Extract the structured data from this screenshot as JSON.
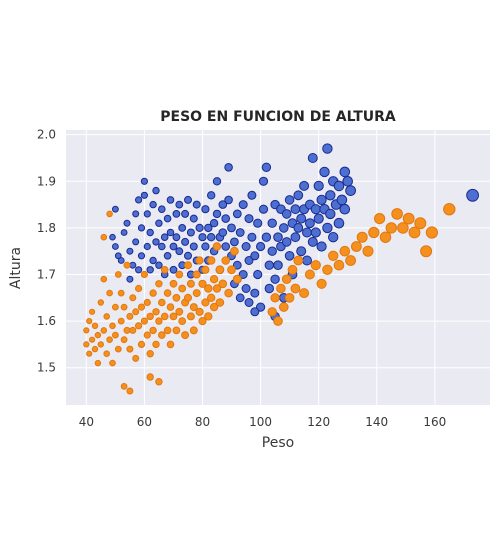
{
  "chart_data": {
    "type": "scatter",
    "title": "PESO EN FUNCION DE ALTURA",
    "xlabel": "Peso",
    "ylabel": "Altura",
    "xlim": [
      33,
      179
    ],
    "ylim": [
      1.42,
      2.01
    ],
    "xticks": [
      "40",
      "60",
      "80",
      "100",
      "120",
      "140",
      "160"
    ],
    "yticks": [
      "1.5",
      "1.6",
      "1.7",
      "1.8",
      "1.9",
      "2.0"
    ],
    "grid": true,
    "legend": "none",
    "colors": {
      "background": "#eaeaf2",
      "grid": "#ffffff",
      "blue_fill": "#4d6fd1",
      "blue_edge": "#1a2a8f",
      "orange_fill": "#f5901e",
      "orange_edge": "#e07810"
    },
    "series": [
      {
        "color": "blue",
        "points": [
          [
            49,
            1.78
          ],
          [
            50,
            1.76
          ],
          [
            50,
            1.84
          ],
          [
            51,
            1.74
          ],
          [
            52,
            1.73
          ],
          [
            53,
            1.79
          ],
          [
            54,
            1.81
          ],
          [
            55,
            1.75
          ],
          [
            55,
            1.69
          ],
          [
            56,
            1.72
          ],
          [
            57,
            1.77
          ],
          [
            57,
            1.83
          ],
          [
            58,
            1.71
          ],
          [
            58,
            1.86
          ],
          [
            59,
            1.74
          ],
          [
            59,
            1.8
          ],
          [
            60,
            1.87
          ],
          [
            60,
            1.9
          ],
          [
            61,
            1.76
          ],
          [
            61,
            1.83
          ],
          [
            62,
            1.71
          ],
          [
            62,
            1.79
          ],
          [
            63,
            1.73
          ],
          [
            63,
            1.85
          ],
          [
            64,
            1.77
          ],
          [
            64,
            1.88
          ],
          [
            65,
            1.81
          ],
          [
            65,
            1.72
          ],
          [
            66,
            1.76
          ],
          [
            66,
            1.84
          ],
          [
            67,
            1.78
          ],
          [
            67,
            1.7
          ],
          [
            68,
            1.82
          ],
          [
            68,
            1.74
          ],
          [
            69,
            1.86
          ],
          [
            69,
            1.79
          ],
          [
            70,
            1.76
          ],
          [
            70,
            1.71
          ],
          [
            71,
            1.83
          ],
          [
            71,
            1.78
          ],
          [
            72,
            1.75
          ],
          [
            72,
            1.85
          ],
          [
            73,
            1.8
          ],
          [
            73,
            1.72
          ],
          [
            74,
            1.77
          ],
          [
            74,
            1.83
          ],
          [
            75,
            1.86
          ],
          [
            75,
            1.74
          ],
          [
            76,
            1.79
          ],
          [
            76,
            1.7
          ],
          [
            77,
            1.82
          ],
          [
            77,
            1.76
          ],
          [
            78,
            1.73
          ],
          [
            78,
            1.85
          ],
          [
            79,
            1.8
          ],
          [
            80,
            1.78
          ],
          [
            80,
            1.71
          ],
          [
            81,
            1.84
          ],
          [
            81,
            1.76
          ],
          [
            82,
            1.8
          ],
          [
            82,
            1.73
          ],
          [
            83,
            1.87
          ],
          [
            83,
            1.78
          ],
          [
            84,
            1.81
          ],
          [
            84,
            1.75
          ],
          [
            85,
            1.9
          ],
          [
            85,
            1.83
          ],
          [
            86,
            1.78
          ],
          [
            86,
            1.71
          ],
          [
            87,
            1.85
          ],
          [
            87,
            1.79
          ],
          [
            88,
            1.82
          ],
          [
            88,
            1.76
          ],
          [
            89,
            1.93
          ],
          [
            89,
            1.86
          ],
          [
            90,
            1.8
          ],
          [
            90,
            1.74
          ],
          [
            91,
            1.77
          ],
          [
            91,
            1.68
          ],
          [
            92,
            1.83
          ],
          [
            92,
            1.72
          ],
          [
            93,
            1.79
          ],
          [
            93,
            1.65
          ],
          [
            94,
            1.85
          ],
          [
            94,
            1.7
          ],
          [
            95,
            1.76
          ],
          [
            95,
            1.67
          ],
          [
            96,
            1.82
          ],
          [
            96,
            1.73
          ],
          [
            97,
            1.87
          ],
          [
            97,
            1.78
          ],
          [
            98,
            1.74
          ],
          [
            98,
            1.66
          ],
          [
            99,
            1.81
          ],
          [
            99,
            1.7
          ],
          [
            100,
            1.63
          ],
          [
            100,
            1.76
          ],
          [
            101,
            1.9
          ],
          [
            101,
            1.84
          ],
          [
            102,
            1.93
          ],
          [
            102,
            1.78
          ],
          [
            103,
            1.72
          ],
          [
            103,
            1.67
          ],
          [
            104,
            1.81
          ],
          [
            104,
            1.75
          ],
          [
            105,
            1.85
          ],
          [
            105,
            1.69
          ],
          [
            106,
            1.78
          ],
          [
            106,
            1.72
          ],
          [
            107,
            1.84
          ],
          [
            107,
            1.76
          ],
          [
            108,
            1.8
          ],
          [
            108,
            1.65
          ],
          [
            109,
            1.83
          ],
          [
            109,
            1.77
          ],
          [
            110,
            1.86
          ],
          [
            110,
            1.74
          ],
          [
            111,
            1.81
          ],
          [
            111,
            1.7
          ],
          [
            112,
            1.84
          ],
          [
            112,
            1.78
          ],
          [
            113,
            1.87
          ],
          [
            113,
            1.8
          ],
          [
            114,
            1.82
          ],
          [
            114,
            1.75
          ],
          [
            115,
            1.89
          ],
          [
            115,
            1.84
          ],
          [
            116,
            1.79
          ],
          [
            116,
            1.73
          ],
          [
            117,
            1.85
          ],
          [
            117,
            1.81
          ],
          [
            118,
            1.95
          ],
          [
            118,
            1.77
          ],
          [
            119,
            1.84
          ],
          [
            119,
            1.79
          ],
          [
            120,
            1.89
          ],
          [
            120,
            1.82
          ],
          [
            121,
            1.86
          ],
          [
            121,
            1.76
          ],
          [
            122,
            1.92
          ],
          [
            122,
            1.84
          ],
          [
            123,
            1.97
          ],
          [
            123,
            1.8
          ],
          [
            124,
            1.87
          ],
          [
            124,
            1.83
          ],
          [
            125,
            1.9
          ],
          [
            125,
            1.78
          ],
          [
            126,
            1.85
          ],
          [
            127,
            1.89
          ],
          [
            127,
            1.81
          ],
          [
            128,
            1.86
          ],
          [
            129,
            1.92
          ],
          [
            129,
            1.84
          ],
          [
            130,
            1.9
          ],
          [
            131,
            1.88
          ],
          [
            173,
            1.87
          ],
          [
            98,
            1.62
          ],
          [
            105,
            1.61
          ],
          [
            96,
            1.64
          ],
          [
            92,
            1.69
          ]
        ]
      },
      {
        "color": "orange",
        "points": [
          [
            40,
            1.55
          ],
          [
            40,
            1.58
          ],
          [
            41,
            1.53
          ],
          [
            41,
            1.6
          ],
          [
            42,
            1.56
          ],
          [
            42,
            1.62
          ],
          [
            43,
            1.54
          ],
          [
            43,
            1.59
          ],
          [
            44,
            1.57
          ],
          [
            44,
            1.51
          ],
          [
            45,
            1.64
          ],
          [
            45,
            1.55
          ],
          [
            46,
            1.58
          ],
          [
            46,
            1.69
          ],
          [
            47,
            1.53
          ],
          [
            47,
            1.61
          ],
          [
            48,
            1.56
          ],
          [
            48,
            1.66
          ],
          [
            49,
            1.59
          ],
          [
            49,
            1.51
          ],
          [
            50,
            1.63
          ],
          [
            50,
            1.57
          ],
          [
            51,
            1.7
          ],
          [
            51,
            1.54
          ],
          [
            52,
            1.6
          ],
          [
            52,
            1.66
          ],
          [
            53,
            1.56
          ],
          [
            53,
            1.63
          ],
          [
            54,
            1.58
          ],
          [
            54,
            1.72
          ],
          [
            55,
            1.61
          ],
          [
            55,
            1.54
          ],
          [
            56,
            1.65
          ],
          [
            56,
            1.58
          ],
          [
            57,
            1.62
          ],
          [
            57,
            1.52
          ],
          [
            58,
            1.67
          ],
          [
            58,
            1.59
          ],
          [
            59,
            1.55
          ],
          [
            59,
            1.63
          ],
          [
            60,
            1.6
          ],
          [
            60,
            1.7
          ],
          [
            61,
            1.57
          ],
          [
            61,
            1.64
          ],
          [
            62,
            1.53
          ],
          [
            62,
            1.61
          ],
          [
            63,
            1.58
          ],
          [
            63,
            1.66
          ],
          [
            64,
            1.62
          ],
          [
            64,
            1.55
          ],
          [
            65,
            1.68
          ],
          [
            65,
            1.6
          ],
          [
            66,
            1.57
          ],
          [
            66,
            1.64
          ],
          [
            67,
            1.61
          ],
          [
            67,
            1.71
          ],
          [
            68,
            1.66
          ],
          [
            68,
            1.58
          ],
          [
            69,
            1.63
          ],
          [
            69,
            1.55
          ],
          [
            70,
            1.68
          ],
          [
            70,
            1.61
          ],
          [
            71,
            1.65
          ],
          [
            71,
            1.58
          ],
          [
            72,
            1.62
          ],
          [
            72,
            1.7
          ],
          [
            73,
            1.67
          ],
          [
            73,
            1.6
          ],
          [
            74,
            1.64
          ],
          [
            74,
            1.57
          ],
          [
            75,
            1.72
          ],
          [
            75,
            1.65
          ],
          [
            76,
            1.61
          ],
          [
            76,
            1.68
          ],
          [
            77,
            1.63
          ],
          [
            77,
            1.58
          ],
          [
            78,
            1.7
          ],
          [
            78,
            1.66
          ],
          [
            79,
            1.62
          ],
          [
            79,
            1.73
          ],
          [
            80,
            1.68
          ],
          [
            80,
            1.6
          ],
          [
            81,
            1.64
          ],
          [
            81,
            1.71
          ],
          [
            82,
            1.67
          ],
          [
            82,
            1.61
          ],
          [
            83,
            1.73
          ],
          [
            83,
            1.65
          ],
          [
            84,
            1.69
          ],
          [
            84,
            1.63
          ],
          [
            85,
            1.76
          ],
          [
            85,
            1.67
          ],
          [
            86,
            1.71
          ],
          [
            86,
            1.64
          ],
          [
            87,
            1.68
          ],
          [
            88,
            1.73
          ],
          [
            89,
            1.66
          ],
          [
            90,
            1.71
          ],
          [
            91,
            1.75
          ],
          [
            92,
            1.69
          ],
          [
            104,
            1.62
          ],
          [
            105,
            1.65
          ],
          [
            106,
            1.6
          ],
          [
            107,
            1.67
          ],
          [
            108,
            1.63
          ],
          [
            109,
            1.69
          ],
          [
            110,
            1.65
          ],
          [
            111,
            1.71
          ],
          [
            112,
            1.67
          ],
          [
            113,
            1.73
          ],
          [
            115,
            1.66
          ],
          [
            117,
            1.7
          ],
          [
            119,
            1.72
          ],
          [
            121,
            1.68
          ],
          [
            123,
            1.71
          ],
          [
            125,
            1.74
          ],
          [
            127,
            1.72
          ],
          [
            129,
            1.75
          ],
          [
            131,
            1.73
          ],
          [
            133,
            1.76
          ],
          [
            135,
            1.78
          ],
          [
            137,
            1.75
          ],
          [
            139,
            1.79
          ],
          [
            141,
            1.82
          ],
          [
            143,
            1.78
          ],
          [
            145,
            1.8
          ],
          [
            147,
            1.83
          ],
          [
            149,
            1.8
          ],
          [
            151,
            1.82
          ],
          [
            153,
            1.79
          ],
          [
            155,
            1.81
          ],
          [
            157,
            1.75
          ],
          [
            159,
            1.79
          ],
          [
            165,
            1.84
          ],
          [
            48,
            1.83
          ],
          [
            46,
            1.78
          ],
          [
            53,
            1.46
          ],
          [
            55,
            1.45
          ],
          [
            62,
            1.48
          ],
          [
            65,
            1.47
          ]
        ]
      }
    ]
  }
}
